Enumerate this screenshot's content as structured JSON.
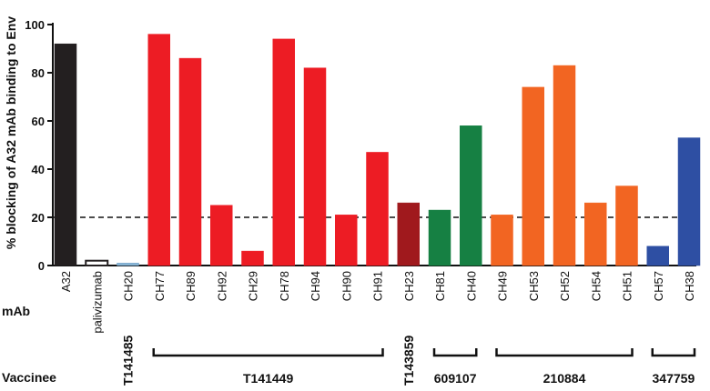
{
  "chart_data": {
    "type": "bar",
    "ylabel": "% blocking of A32 mAb binding to Env",
    "xlabel": "mAb",
    "ylim": [
      0,
      100
    ],
    "yticks": [
      0,
      20,
      40,
      60,
      80,
      100
    ],
    "threshold": 20,
    "categories": [
      "A32",
      "palivizumab",
      "CH20",
      "CH77",
      "CH89",
      "CH92",
      "CH29",
      "CH78",
      "CH94",
      "CH90",
      "CH91",
      "CH23",
      "CH81",
      "CH40",
      "CH49",
      "CH53",
      "CH52",
      "CH54",
      "CH51",
      "CH57",
      "CH38"
    ],
    "values": [
      92,
      2,
      1,
      96,
      86,
      25,
      6,
      94,
      82,
      21,
      47,
      26,
      23,
      58,
      21,
      74,
      83,
      26,
      33,
      8,
      53
    ],
    "bar_colors": [
      "#231f20",
      "#ffffff",
      "#8ab6d6",
      "#ed1c24",
      "#ed1c24",
      "#ed1c24",
      "#ed1c24",
      "#ed1c24",
      "#ed1c24",
      "#ed1c24",
      "#ed1c24",
      "#a0191d",
      "#168043",
      "#168043",
      "#f26522",
      "#f26522",
      "#f26522",
      "#f26522",
      "#f26522",
      "#2e4fa3",
      "#2e4fa3"
    ],
    "bar_strokes": [
      "#231f20",
      "#231f20",
      "#6a9dc4",
      "#ed1c24",
      "#ed1c24",
      "#ed1c24",
      "#ed1c24",
      "#ed1c24",
      "#ed1c24",
      "#ed1c24",
      "#ed1c24",
      "#a0191d",
      "#168043",
      "#168043",
      "#f26522",
      "#f26522",
      "#f26522",
      "#f26522",
      "#f26522",
      "#2e4fa3",
      "#2e4fa3"
    ],
    "vaccinee_label": "Vaccinee",
    "vaccinee_groups": [
      {
        "name": "T141485",
        "from": 2,
        "to": 2,
        "bracket": false
      },
      {
        "name": "T141449",
        "from": 3,
        "to": 10,
        "bracket": true
      },
      {
        "name": "T143859",
        "from": 11,
        "to": 11,
        "bracket": false
      },
      {
        "name": "609107",
        "from": 12,
        "to": 13,
        "bracket": true
      },
      {
        "name": "210884",
        "from": 14,
        "to": 18,
        "bracket": true
      },
      {
        "name": "347759",
        "from": 19,
        "to": 20,
        "bracket": true
      }
    ]
  }
}
